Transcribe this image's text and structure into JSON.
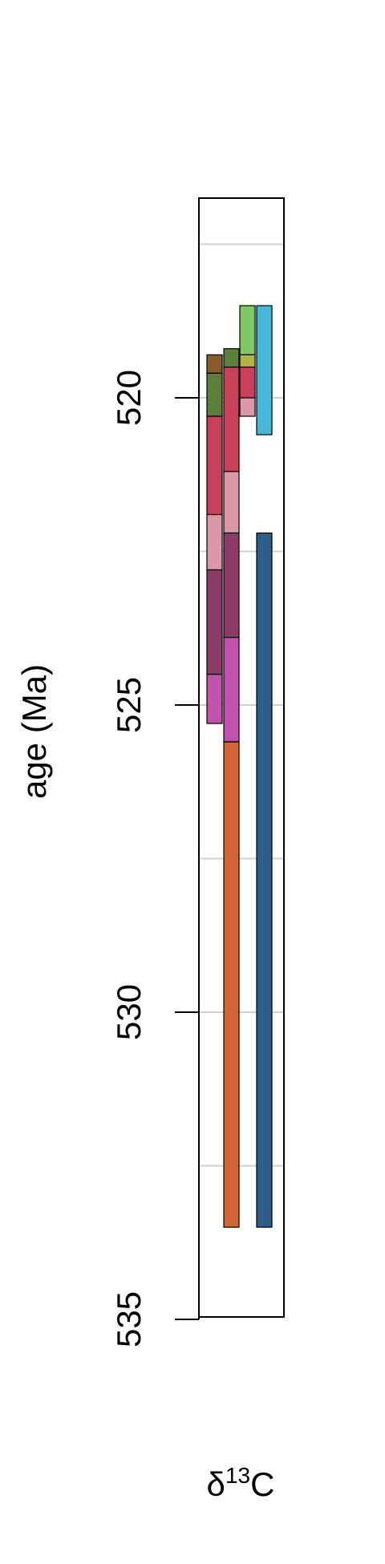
{
  "chart_data": {
    "type": "range-bar",
    "title": "",
    "ylabel": "age (Ma)",
    "xlabel": {
      "main": "δ",
      "sup": "13",
      "tail": "C"
    },
    "ylim": [
      535,
      516.8
    ],
    "y_ticks": [
      520,
      525,
      530,
      535
    ],
    "y_tick_labels": [
      "520",
      "525",
      "530",
      "535"
    ],
    "gridlines": [
      517.5,
      520,
      522.5,
      525,
      527.5,
      530,
      532.5
    ],
    "columns": [
      {
        "name": "column-1",
        "segments": [
          {
            "top": 519.3,
            "bottom": 519.6,
            "color": "#8b5a2b"
          },
          {
            "top": 519.6,
            "bottom": 520.3,
            "color": "#5c7f3c"
          },
          {
            "top": 520.3,
            "bottom": 521.9,
            "color": "#c8405a"
          },
          {
            "top": 521.9,
            "bottom": 522.8,
            "color": "#dc98a8"
          },
          {
            "top": 522.8,
            "bottom": 524.5,
            "color": "#8c3a66"
          },
          {
            "top": 524.5,
            "bottom": 525.3,
            "color": "#c152ad"
          }
        ]
      },
      {
        "name": "column-2",
        "segments": [
          {
            "top": 519.2,
            "bottom": 519.5,
            "color": "#5c7f3c"
          },
          {
            "top": 519.5,
            "bottom": 521.2,
            "color": "#c8405a"
          },
          {
            "top": 521.2,
            "bottom": 522.2,
            "color": "#dc98a8"
          },
          {
            "top": 522.2,
            "bottom": 523.9,
            "color": "#8c3a66"
          },
          {
            "top": 523.9,
            "bottom": 525.6,
            "color": "#c152ad"
          },
          {
            "top": 525.6,
            "bottom": 533.5,
            "color": "#cf6737"
          }
        ]
      },
      {
        "name": "column-3",
        "segments": [
          {
            "top": 518.5,
            "bottom": 519.3,
            "color": "#7ec865"
          },
          {
            "top": 519.3,
            "bottom": 519.5,
            "color": "#b0b544"
          },
          {
            "top": 519.5,
            "bottom": 520.0,
            "color": "#c8405a"
          },
          {
            "top": 520.0,
            "bottom": 520.3,
            "color": "#dc98a8"
          }
        ]
      },
      {
        "name": "column-4",
        "segments": [
          {
            "top": 518.5,
            "bottom": 520.6,
            "color": "#47b9d8"
          },
          {
            "top": 522.2,
            "bottom": 533.5,
            "color": "#2e5d89"
          }
        ]
      }
    ]
  }
}
